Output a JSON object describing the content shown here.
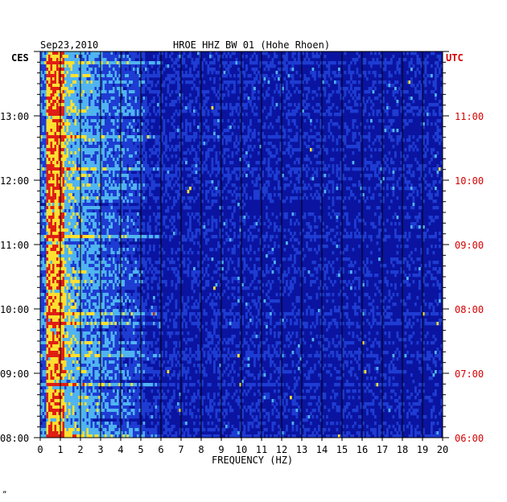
{
  "header": {
    "date": "Sep23,2010",
    "station": "HROE HHZ BW 01 (Hohe Rhoen)"
  },
  "left_axis": {
    "zone": "CES",
    "ticks": [
      "13:00",
      "12:00",
      "11:00",
      "10:00",
      "09:00",
      "08:00"
    ]
  },
  "right_axis": {
    "zone": "UTC",
    "ticks": [
      "11:00",
      "10:00",
      "09:00",
      "08:00",
      "07:00",
      "06:00"
    ]
  },
  "corner_mark": "„",
  "colors": {
    "background": "#0a14a0",
    "low": "#1e3cd2",
    "mid": "#50b4f0",
    "high": "#ffe030",
    "peak": "#e01e14",
    "gridline": "#000000",
    "utc_text": "#d40000"
  },
  "chart_data": {
    "type": "heatmap",
    "title": "HROE HHZ BW 01 (Hohe Rhoen)",
    "xlabel": "FREQUENCY (HZ)",
    "x_ticks": [
      "0",
      "1",
      "2",
      "3",
      "4",
      "5",
      "6",
      "7",
      "8",
      "9",
      "10",
      "11",
      "12",
      "13",
      "14",
      "15",
      "16",
      "17",
      "18",
      "19",
      "20"
    ],
    "xlim": [
      0,
      20
    ],
    "ylim_local": [
      "08:00",
      "14:00"
    ],
    "ylim_utc": [
      "06:00",
      "12:00"
    ],
    "grid": true,
    "colorscale": [
      "#0a14a0",
      "#1e3cd2",
      "#50b4f0",
      "#ffe030",
      "#e01e14"
    ],
    "description_bands": [
      {
        "freq_range_hz": [
          0,
          3
        ],
        "relative_energy": "high"
      },
      {
        "freq_range_hz": [
          3,
          5
        ],
        "relative_energy": "medium"
      },
      {
        "freq_range_hz": [
          5,
          20
        ],
        "relative_energy": "low"
      }
    ]
  }
}
